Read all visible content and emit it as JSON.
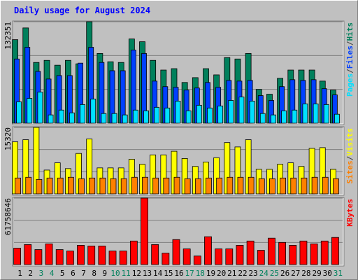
{
  "chart_data": [
    {
      "type": "bar",
      "title": "Daily usage for August 2024",
      "legend_separator": "/",
      "ylim": [
        0,
        132351
      ],
      "yticks": [
        132351
      ],
      "series": [
        {
          "name": "Hits",
          "color": "#00805c",
          "values": [
            108950,
            124250,
            79230,
            81930,
            75630,
            81930,
            77430,
            132351,
            90930,
            80130,
            79230,
            109840,
            106240,
            81930,
            69330,
            71130,
            53120,
            59420,
            71130,
            63020,
            85530,
            83730,
            90930,
            44120,
            37810,
            58520,
            69330,
            69330,
            69330,
            54920,
            43220
          ]
        },
        {
          "name": "Files",
          "color": "#0040ff",
          "values": [
            83730,
            99040,
            67530,
            57620,
            62120,
            62120,
            78330,
            99040,
            79230,
            68430,
            68430,
            95440,
            90940,
            54920,
            47720,
            46820,
            43220,
            45920,
            53120,
            46820,
            55820,
            54920,
            55820,
            36010,
            29710,
            47720,
            56720,
            55820,
            56720,
            45020,
            36910
          ]
        },
        {
          "name": "Pages",
          "color": "#00e0ff",
          "values": [
            27910,
            32410,
            40520,
            10800,
            17110,
            13510,
            24310,
            31510,
            12610,
            12610,
            10800,
            17110,
            16210,
            20710,
            19810,
            28810,
            16210,
            23410,
            19810,
            22510,
            29710,
            34210,
            28810,
            12610,
            10800,
            16210,
            17110,
            25210,
            25210,
            24310,
            11700
          ]
        }
      ]
    },
    {
      "type": "bar",
      "legend_separator": "/",
      "ylim": [
        0,
        15320
      ],
      "yticks": [
        15320
      ],
      "series": [
        {
          "name": "Visits",
          "color": "#ffff00",
          "values": [
            11990,
            12490,
            15320,
            5490,
            7160,
            5830,
            9320,
            12650,
            5990,
            5990,
            5990,
            7990,
            6830,
            8990,
            8990,
            9820,
            8160,
            6330,
            7330,
            8330,
            11820,
            10820,
            12490,
            5660,
            5660,
            6830,
            7160,
            6330,
            10490,
            10660,
            5660
          ]
        },
        {
          "name": "Sites",
          "color": "#ff8000",
          "values": [
            3660,
            3830,
            3330,
            3660,
            3660,
            3830,
            3500,
            3660,
            3660,
            3500,
            3500,
            3830,
            3830,
            3660,
            3660,
            3830,
            3500,
            3500,
            3660,
            3660,
            3830,
            3830,
            3830,
            3500,
            3500,
            3660,
            3660,
            3660,
            3830,
            3830,
            3500
          ]
        }
      ]
    },
    {
      "type": "bar",
      "legend_separator": "/",
      "ylim": [
        0,
        61758646
      ],
      "yticks": [
        61758646
      ],
      "categories": [
        "1",
        "2",
        "3",
        "4",
        "5",
        "6",
        "7",
        "8",
        "9",
        "10",
        "11",
        "12",
        "13",
        "14",
        "15",
        "16",
        "17",
        "18",
        "19",
        "20",
        "21",
        "22",
        "23",
        "24",
        "25",
        "26",
        "27",
        "28",
        "29",
        "30",
        "31"
      ],
      "category_colors": [
        "#000000",
        "#000000",
        "#00805c",
        "#00805c",
        "#000000",
        "#000000",
        "#000000",
        "#000000",
        "#000000",
        "#00805c",
        "#00805c",
        "#000000",
        "#000000",
        "#000000",
        "#000000",
        "#000000",
        "#00805c",
        "#00805c",
        "#000000",
        "#000000",
        "#000000",
        "#000000",
        "#000000",
        "#00805c",
        "#00805c",
        "#000000",
        "#000000",
        "#000000",
        "#000000",
        "#000000",
        "#00805c"
      ],
      "series": [
        {
          "name": "KBytes",
          "color": "#ff0000",
          "values": [
            15270000,
            18590000,
            13950000,
            19260000,
            13950000,
            12620000,
            17930000,
            17270000,
            17270000,
            12620000,
            12620000,
            21910000,
            61758646,
            18590000,
            10630000,
            23240000,
            14610000,
            7970000,
            25900000,
            14610000,
            14610000,
            17930000,
            21910000,
            13280000,
            24570000,
            20590000,
            17930000,
            21910000,
            19260000,
            21910000,
            25230000
          ]
        }
      ]
    }
  ]
}
